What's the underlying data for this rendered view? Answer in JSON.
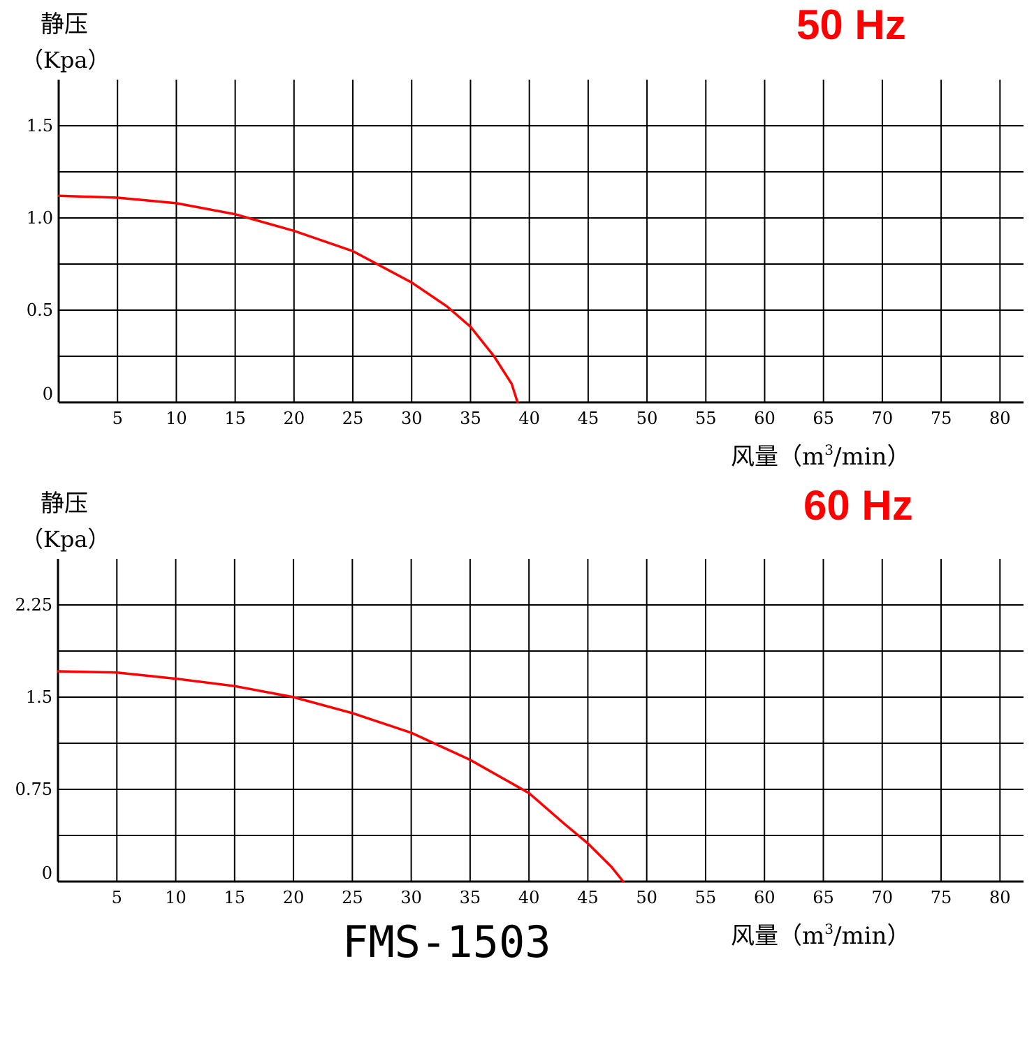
{
  "chart_data": [
    {
      "type": "line",
      "title": "50 Hz",
      "ylabel": "静压",
      "yunit": "（Kpa）",
      "xlabel_prefix": "风量（m",
      "xlabel_sup": "3",
      "xlabel_suffix": "/min）",
      "xlim": [
        0,
        82
      ],
      "ylim": [
        0,
        1.75
      ],
      "x_ticks": [
        5,
        10,
        15,
        20,
        25,
        30,
        35,
        40,
        45,
        50,
        55,
        60,
        65,
        70,
        75,
        80
      ],
      "x_tick_labels": [
        "5",
        "10",
        "15",
        "20",
        "25",
        "30",
        "35",
        "40",
        "45",
        "50",
        "55",
        "60",
        "65",
        "70",
        "75",
        "80"
      ],
      "y_gridlines": [
        0.25,
        0.5,
        0.75,
        1.0,
        1.25,
        1.5
      ],
      "y_tick_values": [
        0,
        0.5,
        1.0,
        1.5
      ],
      "y_tick_labels": [
        "0",
        "0.5",
        "1.0",
        "1.5"
      ],
      "grid": true,
      "series_color": "#ff0000",
      "series": [
        {
          "x": [
            0,
            5,
            10,
            15,
            20,
            25,
            30,
            33,
            35,
            37,
            38.5,
            39
          ],
          "y": [
            1.12,
            1.11,
            1.08,
            1.02,
            0.93,
            0.82,
            0.65,
            0.52,
            0.41,
            0.25,
            0.1,
            0.0
          ]
        }
      ]
    },
    {
      "type": "line",
      "title": "60 Hz",
      "ylabel": "静压",
      "yunit": "（Kpa）",
      "xlabel_prefix": "风量（m",
      "xlabel_sup": "3",
      "xlabel_suffix": "/min）",
      "xlim": [
        0,
        82
      ],
      "ylim": [
        0,
        2.625
      ],
      "x_ticks": [
        5,
        10,
        15,
        20,
        25,
        30,
        35,
        40,
        45,
        50,
        55,
        60,
        65,
        70,
        75,
        80
      ],
      "x_tick_labels": [
        "5",
        "10",
        "15",
        "20",
        "25",
        "30",
        "35",
        "40",
        "45",
        "50",
        "55",
        "60",
        "65",
        "70",
        "75",
        "80"
      ],
      "y_gridlines": [
        0.375,
        0.75,
        1.125,
        1.5,
        1.875,
        2.25
      ],
      "y_tick_values": [
        0,
        0.75,
        1.5,
        2.25
      ],
      "y_tick_labels": [
        "0",
        "0.75",
        "1.5",
        "2.25"
      ],
      "grid": true,
      "series_color": "#ff0000",
      "series": [
        {
          "x": [
            0,
            5,
            10,
            15,
            20,
            25,
            30,
            35,
            40,
            43,
            45,
            47,
            48
          ],
          "y": [
            1.71,
            1.7,
            1.65,
            1.59,
            1.5,
            1.37,
            1.21,
            0.99,
            0.72,
            0.47,
            0.31,
            0.12,
            0.0
          ]
        }
      ]
    }
  ],
  "model_name": "FMS-1503"
}
